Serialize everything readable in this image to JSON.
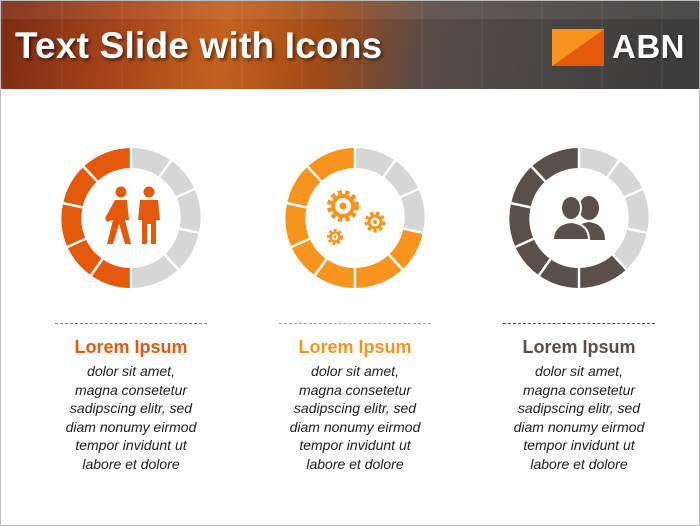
{
  "header": {
    "title": "Text Slide with Icons"
  },
  "logo": {
    "text": "ABN"
  },
  "colors": {
    "orange_dark": "#e5590c",
    "orange": "#f7941e",
    "brown": "#5a4f49",
    "grey": "#d6d6d6"
  },
  "items": [
    {
      "heading": "Lorem Ipsum",
      "icon": "people-walking-icon",
      "accent": "#e5590c",
      "lines": [
        "dolor sit amet,",
        "magna consetetur",
        "sadipscing elitr, sed",
        "diam nonumy eirmod",
        "tempor invidunt ut",
        "labore et dolore"
      ]
    },
    {
      "heading": "Lorem Ipsum",
      "icon": "gears-icon",
      "accent": "#f7941e",
      "lines": [
        "dolor sit amet,",
        "magna consetetur",
        "sadipscing elitr, sed",
        "diam nonumy eirmod",
        "tempor invidunt ut",
        "labore et dolore"
      ]
    },
    {
      "heading": "Lorem Ipsum",
      "icon": "users-icon",
      "accent": "#5a4f49",
      "lines": [
        "dolor sit amet,",
        "magna consetetur",
        "sadipscing elitr, sed",
        "diam nonumy eirmod",
        "tempor invidunt ut",
        "labore et dolore"
      ]
    }
  ]
}
